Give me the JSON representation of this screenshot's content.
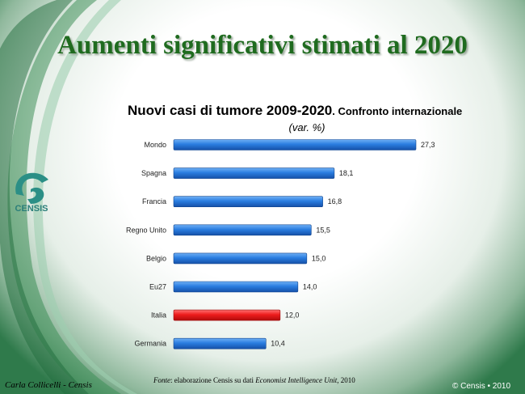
{
  "slide": {
    "title": "Aumenti significativi stimati al 2020",
    "logo_text": "CENSIS",
    "author": "Carla Collicelli - Censis",
    "copyright": "© Censis • 2010",
    "source_prefix": "Fonte",
    "source_text": ": elaborazione Censis su dati ",
    "source_italic": "Economist Intelligence Unit",
    "source_suffix": ", 2010"
  },
  "colors": {
    "bar": "#1e6fd6",
    "highlight_bar": "#e81515",
    "title": "#1f6b1f"
  },
  "chart_data": {
    "type": "bar",
    "orientation": "horizontal",
    "title": "Nuovi casi di tumore 2009-2020",
    "title_suffix": ". Confronto internazionale",
    "subtitle": "(var. %)",
    "categories": [
      "Mondo",
      "Spagna",
      "Francia",
      "Regno Unito",
      "Belgio",
      "Eu27",
      "Italia",
      "Germania"
    ],
    "values": [
      27.3,
      18.1,
      16.8,
      15.5,
      15.0,
      14.0,
      12.0,
      10.4
    ],
    "value_labels": [
      "27,3",
      "18,1",
      "16,8",
      "15,5",
      "15,0",
      "14,0",
      "12,0",
      "10,4"
    ],
    "highlight": "Italia",
    "xlim": [
      0,
      27.3
    ],
    "grid": false,
    "legend": "none"
  }
}
